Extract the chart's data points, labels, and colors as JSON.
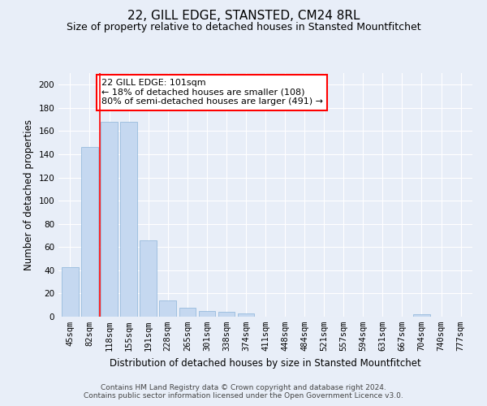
{
  "title": "22, GILL EDGE, STANSTED, CM24 8RL",
  "subtitle": "Size of property relative to detached houses in Stansted Mountfitchet",
  "xlabel": "Distribution of detached houses by size in Stansted Mountfitchet",
  "ylabel": "Number of detached properties",
  "categories": [
    "45sqm",
    "82sqm",
    "118sqm",
    "155sqm",
    "191sqm",
    "228sqm",
    "265sqm",
    "301sqm",
    "338sqm",
    "374sqm",
    "411sqm",
    "448sqm",
    "484sqm",
    "521sqm",
    "557sqm",
    "594sqm",
    "631sqm",
    "667sqm",
    "704sqm",
    "740sqm",
    "777sqm"
  ],
  "values": [
    43,
    146,
    168,
    168,
    66,
    14,
    8,
    5,
    4,
    3,
    0,
    0,
    0,
    0,
    0,
    0,
    0,
    0,
    2,
    0,
    0
  ],
  "bar_color": "#c5d8f0",
  "bar_edge_color": "#8ab4d8",
  "vline_x": 1.5,
  "vline_color": "red",
  "annotation_text": "22 GILL EDGE: 101sqm\n← 18% of detached houses are smaller (108)\n80% of semi-detached houses are larger (491) →",
  "annotation_box_color": "white",
  "annotation_box_edge": "red",
  "ylim": [
    0,
    210
  ],
  "yticks": [
    0,
    20,
    40,
    60,
    80,
    100,
    120,
    140,
    160,
    180,
    200
  ],
  "footer_line1": "Contains HM Land Registry data © Crown copyright and database right 2024.",
  "footer_line2": "Contains public sector information licensed under the Open Government Licence v3.0.",
  "bg_color": "#e8eef8",
  "plot_bg_color": "#e8eef8",
  "title_fontsize": 11,
  "subtitle_fontsize": 9,
  "axis_label_fontsize": 8.5,
  "tick_fontsize": 7.5,
  "footer_fontsize": 6.5,
  "annotation_fontsize": 8
}
